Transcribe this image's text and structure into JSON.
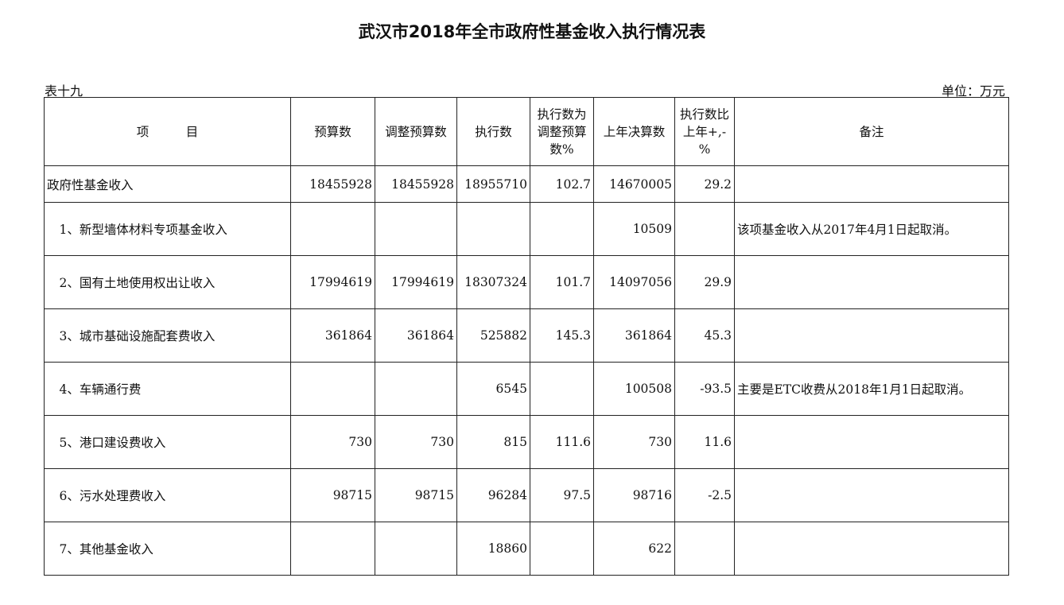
{
  "title": "武汉市2018年全市政府性基金收入执行情况表",
  "table_no": "表十九",
  "unit": "单位：万元",
  "headers": [
    "项　　　目",
    "预算数",
    "调整预算数",
    "执行数",
    "执行数为调整预算数%",
    "上年决算数",
    "执行数比上年+,-%",
    "备注"
  ],
  "rows": [
    {
      "item": "政府性基金收入",
      "budget": "18455928",
      "adjusted": "18455928",
      "executed": "18955710",
      "pct": "102.7",
      "last_year": "14670005",
      "change": "29.2",
      "note": ""
    },
    {
      "item": "　1、新型墙体材料专项基金收入",
      "budget": "",
      "adjusted": "",
      "executed": "",
      "pct": "",
      "last_year": "10509",
      "change": "",
      "note": "该项基金收入从2017年4月1日起取消。"
    },
    {
      "item": "　2、国有土地使用权出让收入",
      "budget": "17994619",
      "adjusted": "17994619",
      "executed": "18307324",
      "pct": "101.7",
      "last_year": "14097056",
      "change": "29.9",
      "note": ""
    },
    {
      "item": "　3、城市基础设施配套费收入",
      "budget": "361864",
      "adjusted": "361864",
      "executed": "525882",
      "pct": "145.3",
      "last_year": "361864",
      "change": "45.3",
      "note": ""
    },
    {
      "item": "　4、车辆通行费",
      "budget": "",
      "adjusted": "",
      "executed": "6545",
      "pct": "",
      "last_year": "100508",
      "change": "-93.5",
      "note": "主要是ETC收费从2018年1月1日起取消。"
    },
    {
      "item": "　5、港口建设费收入",
      "budget": "730",
      "adjusted": "730",
      "executed": "815",
      "pct": "111.6",
      "last_year": "730",
      "change": "11.6",
      "note": ""
    },
    {
      "item": "　6、污水处理费收入",
      "budget": "98715",
      "adjusted": "98715",
      "executed": "96284",
      "pct": "97.5",
      "last_year": "98716",
      "change": "-2.5",
      "note": ""
    },
    {
      "item": "　7、其他基金收入",
      "budget": "",
      "adjusted": "",
      "executed": "18860",
      "pct": "",
      "last_year": "622",
      "change": "",
      "note": ""
    }
  ]
}
